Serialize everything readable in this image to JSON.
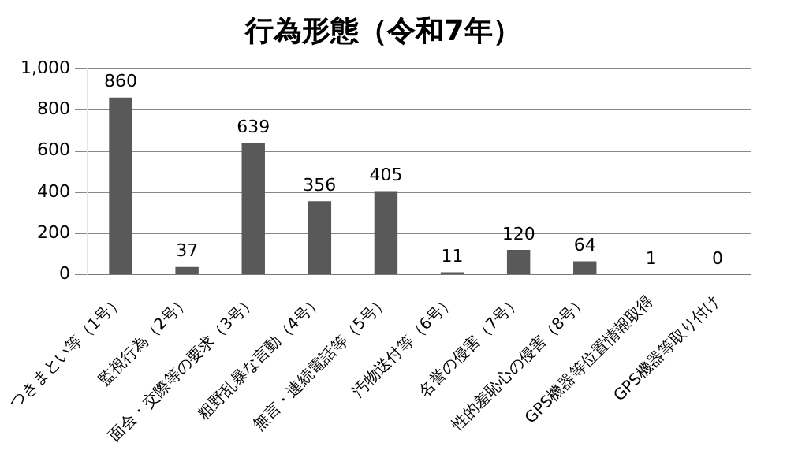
{
  "chart_data": {
    "type": "bar",
    "title": "行為形態（令和7年）",
    "categories": [
      "つきまとい等（1号）",
      "監視行為（2号）",
      "面会・交際等の要求（3号）",
      "粗野乱暴な言動（4号）",
      "無言・連続電話等（5号）",
      "汚物送付等（6号）",
      "名誉の侵害（7号）",
      "性的羞恥心の侵害（8号）",
      "GPS機器等位置情報取得",
      "GPS機器等取り付け"
    ],
    "values": [
      860,
      37,
      639,
      356,
      405,
      11,
      120,
      64,
      1,
      0
    ],
    "color": "#595959",
    "ylim": [
      0,
      1000
    ],
    "yticks": [
      0,
      200,
      400,
      600,
      800,
      {
        "value": 1000,
        "label": "1,000"
      }
    ],
    "grid": "y",
    "legend": false,
    "data_labels": true
  }
}
